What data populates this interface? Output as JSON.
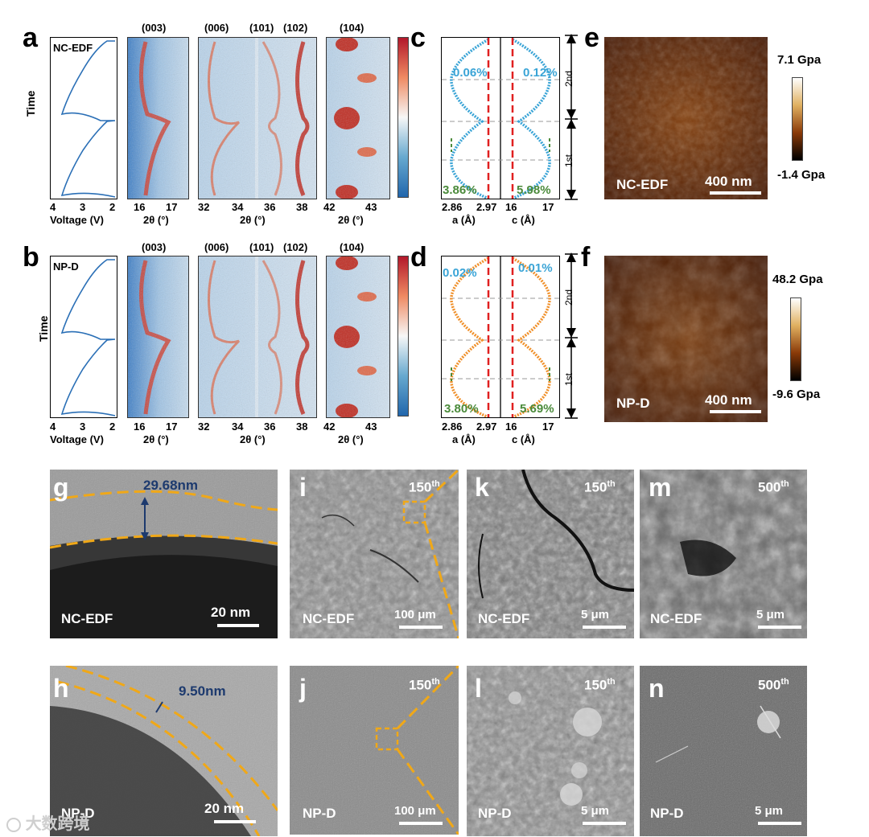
{
  "panels": {
    "a": "a",
    "b": "b",
    "c": "c",
    "d": "d",
    "e": "e",
    "f": "f",
    "g": "g",
    "h": "h",
    "i": "i",
    "j": "j",
    "k": "k",
    "l": "l",
    "m": "m",
    "n": "n"
  },
  "voltage_panel": {
    "a_label": "NC-EDF",
    "b_label": "NP-D",
    "y_label": "Time",
    "x_ticks": [
      "4",
      "3",
      "2"
    ],
    "x_label": "Voltage (V)"
  },
  "xrd": {
    "peaks_1": "(003)",
    "peaks_2a": "(006)",
    "peaks_2b": "(101)",
    "peaks_2c": "(102)",
    "peaks_3": "(104)",
    "ticks_1": [
      "16",
      "17"
    ],
    "ticks_2": [
      "32",
      "34",
      "36",
      "38"
    ],
    "ticks_3": [
      "42",
      "43"
    ],
    "x_label": "2θ (°)"
  },
  "lattice": {
    "c_top_left": "0.06%",
    "c_top_right": "0.12%",
    "c_bot_left": "3.86%",
    "c_bot_right": "5.98%",
    "d_top_left": "0.02%",
    "d_top_right": "0.01%",
    "d_bot_left": "3.80%",
    "d_bot_right": "5.69%",
    "a_ticks": [
      "2.86",
      "2.97"
    ],
    "c_ticks": [
      "16",
      "17"
    ],
    "a_label": "a (Å)",
    "c_label": "c (Å)",
    "cycle_2": "2nd",
    "cycle_1": "1st",
    "colors": {
      "c_series": "#3aa4d6",
      "d_series": "#f0902a",
      "ref_line": "#e02020",
      "green": "#4a8a3a"
    }
  },
  "afm": {
    "e_label": "NC-EDF",
    "f_label": "NP-D",
    "e_max": "7.1 Gpa",
    "e_min": "-1.4 Gpa",
    "f_max": "48.2 Gpa",
    "f_min": "-9.6 Gpa",
    "scale": "400 nm"
  },
  "tem": {
    "g_label": "NC-EDF",
    "g_thickness": "29.68nm",
    "g_scale": "20 nm",
    "h_label": "NP-D",
    "h_thickness": "9.50nm",
    "h_scale": "20 nm"
  },
  "sem": {
    "i_label": "NC-EDF",
    "i_cycle": "150",
    "i_scale": "100 μm",
    "j_label": "NP-D",
    "j_cycle": "150",
    "j_scale": "100 μm",
    "k_label": "NC-EDF",
    "k_cycle": "150",
    "k_scale": "5 μm",
    "l_label": "NP-D",
    "l_cycle": "150",
    "l_scale": "5 μm",
    "m_label": "NC-EDF",
    "m_cycle": "500",
    "m_scale": "5 μm",
    "n_label": "NP-D",
    "n_cycle": "500",
    "n_scale": "5 μm",
    "th": "th"
  },
  "watermark": "大数跨境"
}
